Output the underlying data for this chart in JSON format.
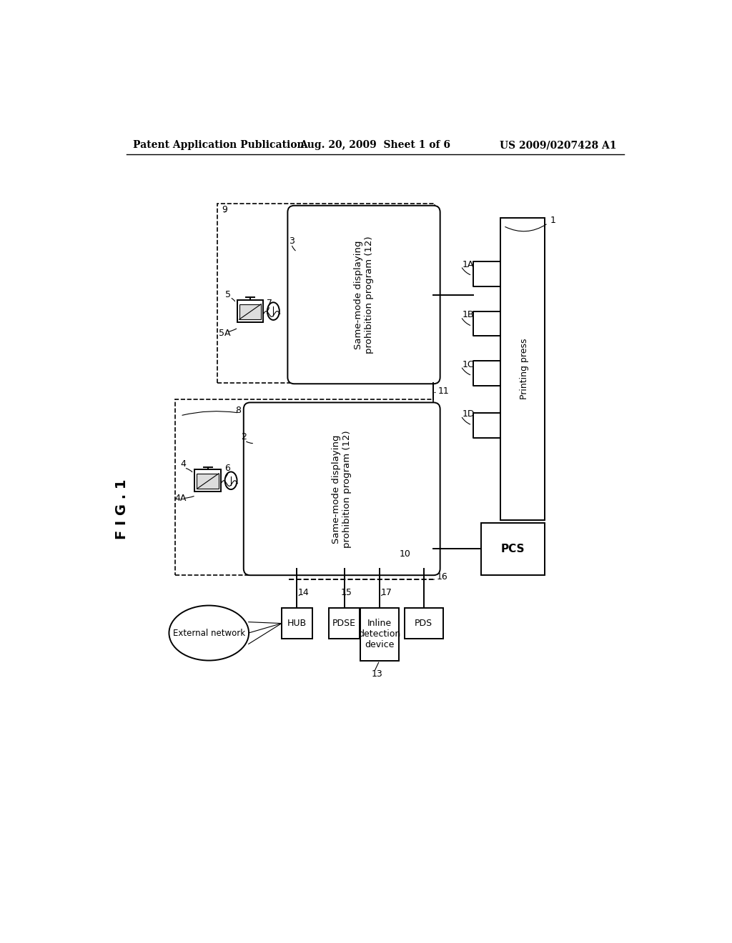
{
  "bg_color": "#ffffff",
  "header_left": "Patent Application Publication",
  "header_mid": "Aug. 20, 2009  Sheet 1 of 6",
  "header_right": "US 2009/0207428 A1",
  "fig_label": "F I G . 1",
  "box1_text": "Same-mode displaying\nprohibition program (12)",
  "box2_text": "Same-mode displaying\nprohibition program (12)",
  "pcs_label": "PCS",
  "printing_press_label": "Printing press",
  "hub_label": "HUB",
  "pdse_label": "PDSE",
  "inline_label": "Inline\ndetection\ndevice",
  "pds_label": "PDS",
  "external_network_label": "External network",
  "line_color": "#000000",
  "lw": 1.4,
  "lw_thin": 0.8,
  "fs_header": 10,
  "fs_body": 9,
  "fs_label": 8.5,
  "fs_fig": 14
}
